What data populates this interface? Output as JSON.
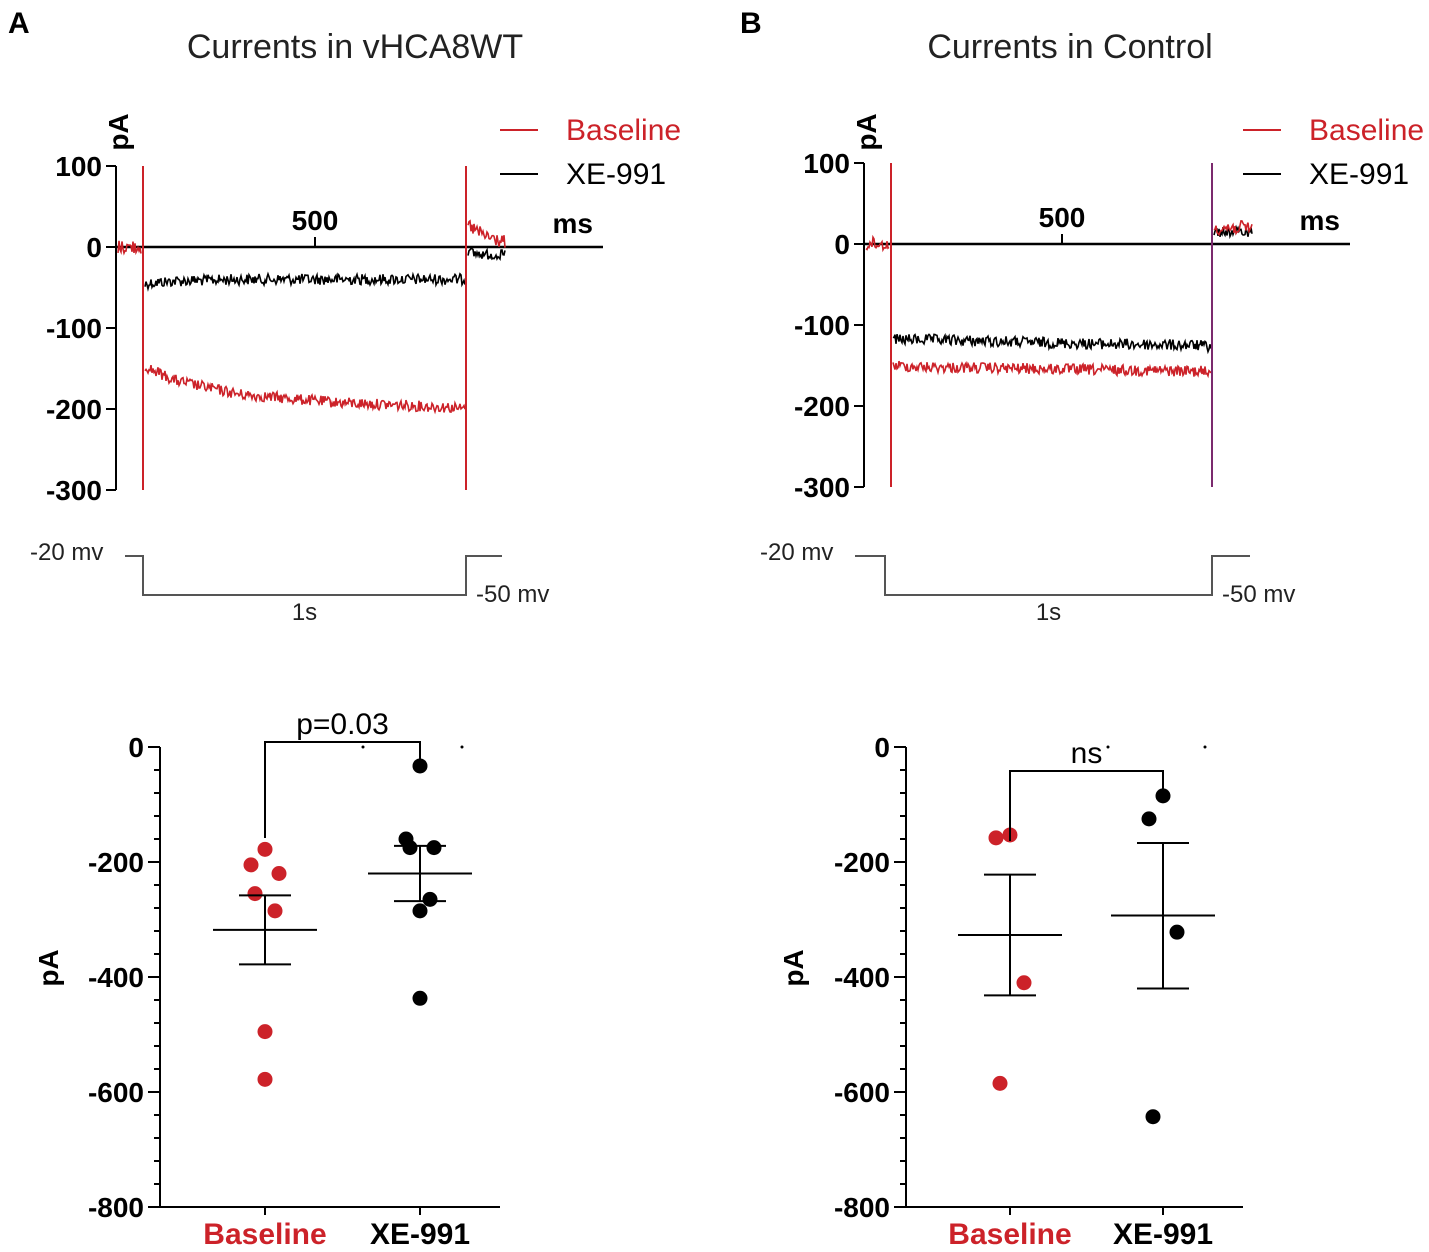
{
  "colors": {
    "baseline": "#cc2229",
    "xe991": "#000000",
    "axis": "#000000",
    "protocol": "#555555"
  },
  "panels": [
    {
      "label": "A",
      "title": "Currents in vHCA8WT",
      "trace": {
        "y_axis_label": "pA",
        "x_axis_label": "ms",
        "y_ticks": [
          "100",
          "0",
          "-100",
          "-200",
          "-300"
        ],
        "x_tick": "500",
        "legend": [
          "Baseline",
          "XE-991"
        ]
      },
      "protocol": {
        "hold_label": "-20 mv",
        "step_label": "-50 mv",
        "duration_label": "1s"
      },
      "scatter": {
        "y_axis_label": "pA",
        "y_ticks": [
          "0",
          "-200",
          "-400",
          "-600",
          "-800"
        ],
        "categories": [
          "Baseline",
          "XE-991"
        ],
        "significance": "p=0.03"
      }
    },
    {
      "label": "B",
      "title": "Currents in Control",
      "trace": {
        "y_axis_label": "pA",
        "x_axis_label": "ms",
        "y_ticks": [
          "100",
          "0",
          "-100",
          "-200",
          "-300"
        ],
        "x_tick": "500",
        "legend": [
          "Baseline",
          "XE-991"
        ]
      },
      "protocol": {
        "hold_label": "-20 mv",
        "step_label": "-50 mv",
        "duration_label": "1s"
      },
      "scatter": {
        "y_axis_label": "pA",
        "y_ticks": [
          "0",
          "-200",
          "-400",
          "-600",
          "-800"
        ],
        "categories": [
          "Baseline",
          "XE-991"
        ],
        "significance": "ns"
      }
    }
  ],
  "chart_data": [
    {
      "type": "line",
      "title": "Currents in vHCA8WT",
      "xlabel": "ms",
      "ylabel": "pA",
      "ylim": [
        -300,
        100
      ],
      "series": [
        {
          "name": "Baseline",
          "x": [
            0,
            10,
            100,
            300,
            600,
            950,
            1000
          ],
          "values": [
            -150,
            -148,
            -165,
            -182,
            -192,
            -198,
            -200
          ]
        },
        {
          "name": "XE-991",
          "x": [
            0,
            10,
            100,
            300,
            600,
            950,
            1000
          ],
          "values": [
            -50,
            -45,
            -42,
            -40,
            -40,
            -40,
            -40
          ]
        }
      ]
    },
    {
      "type": "scatter",
      "title": "Currents in vHCA8WT",
      "ylabel": "pA",
      "ylim": [
        -800,
        0
      ],
      "categories": [
        "Baseline",
        "XE-991"
      ],
      "series": [
        {
          "name": "Baseline",
          "values": [
            -178,
            -205,
            -220,
            -255,
            -285,
            -495,
            -578
          ],
          "mean": -318,
          "sem_low": -378,
          "sem_high": -258
        },
        {
          "name": "XE-991",
          "values": [
            -33,
            -160,
            -175,
            -175,
            -265,
            -285,
            -437
          ],
          "mean": -220,
          "sem_low": -268,
          "sem_high": -172
        }
      ],
      "annotation": "p=0.03"
    },
    {
      "type": "line",
      "title": "Currents in Control",
      "xlabel": "ms",
      "ylabel": "pA",
      "ylim": [
        -300,
        100
      ],
      "series": [
        {
          "name": "Baseline",
          "x": [
            0,
            10,
            100,
            300,
            600,
            950,
            1000
          ],
          "values": [
            -155,
            -150,
            -152,
            -153,
            -155,
            -157,
            -158
          ]
        },
        {
          "name": "XE-991",
          "x": [
            0,
            10,
            100,
            300,
            600,
            950,
            1000
          ],
          "values": [
            -125,
            -118,
            -118,
            -120,
            -123,
            -125,
            -127
          ]
        }
      ]
    },
    {
      "type": "scatter",
      "title": "Currents in Control",
      "ylabel": "pA",
      "ylim": [
        -800,
        0
      ],
      "categories": [
        "Baseline",
        "XE-991"
      ],
      "series": [
        {
          "name": "Baseline",
          "values": [
            -153,
            -158,
            -410,
            -585
          ],
          "mean": -327,
          "sem_low": -432,
          "sem_high": -222
        },
        {
          "name": "XE-991",
          "values": [
            -85,
            -125,
            -322,
            -643
          ],
          "mean": -293,
          "sem_low": -420,
          "sem_high": -167
        }
      ],
      "annotation": "ns"
    }
  ]
}
